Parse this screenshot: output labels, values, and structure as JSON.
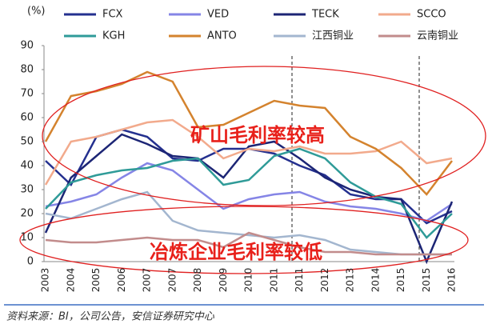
{
  "chart_data": {
    "type": "line",
    "y_label": "(%)",
    "categories": [
      "2003",
      "2004",
      "2005",
      "2006",
      "2007",
      "2007",
      "2008",
      "2009",
      "2010",
      "2011",
      "2011",
      "2012",
      "2013",
      "2014",
      "2015",
      "2015",
      "2016"
    ],
    "series": [
      {
        "name": "FCX",
        "color": "#24308f",
        "values": [
          42,
          32,
          52,
          55,
          52,
          43,
          42,
          47,
          47,
          45,
          40,
          36,
          28,
          26,
          26,
          16,
          21
        ]
      },
      {
        "name": "VED",
        "color": "#8585e6",
        "values": [
          23,
          25,
          28,
          35,
          41,
          38,
          30,
          22,
          26,
          28,
          29,
          25,
          23,
          22,
          20,
          17,
          24
        ]
      },
      {
        "name": "TECK",
        "color": "#1c2575",
        "values": [
          12,
          35,
          44,
          53,
          49,
          44,
          43,
          35,
          48,
          50,
          43,
          35,
          30,
          27,
          26,
          0,
          25
        ]
      },
      {
        "name": "SCCO",
        "color": "#f2aa8c",
        "values": [
          32,
          50,
          52,
          55,
          58,
          59,
          52,
          43,
          47,
          46,
          48,
          45,
          45,
          46,
          50,
          41,
          43
        ]
      },
      {
        "name": "KGH",
        "color": "#2f9b98",
        "values": [
          22,
          33,
          36,
          38,
          39,
          42,
          43,
          32,
          34,
          44,
          47,
          43,
          33,
          27,
          24,
          10,
          20
        ]
      },
      {
        "name": "ANTO",
        "color": "#d4832e",
        "values": [
          50,
          69,
          71,
          74,
          79,
          75,
          56,
          57,
          62,
          67,
          65,
          64,
          52,
          47,
          39,
          28,
          42
        ]
      },
      {
        "name": "江西铜业",
        "color": "#a3b6cf",
        "values": [
          20,
          18,
          22,
          26,
          29,
          17,
          13,
          12,
          11,
          10,
          11,
          9,
          5,
          4,
          3,
          3,
          3
        ]
      },
      {
        "name": "云南铜业",
        "color": "#c28c8c",
        "values": [
          9,
          8,
          8,
          9,
          10,
          9,
          9,
          6,
          12,
          9,
          6,
          4,
          4,
          3,
          3,
          3,
          3
        ]
      }
    ],
    "ylim": [
      0,
      90
    ],
    "yticks": [
      0,
      10,
      20,
      30,
      40,
      50,
      60,
      70,
      80,
      90
    ],
    "grid": false,
    "annotations": [
      "矿山毛利率较高",
      "冶炼企业毛利率较低"
    ],
    "source": "资料来源：BI，公司公告，安信证券研究中心"
  }
}
